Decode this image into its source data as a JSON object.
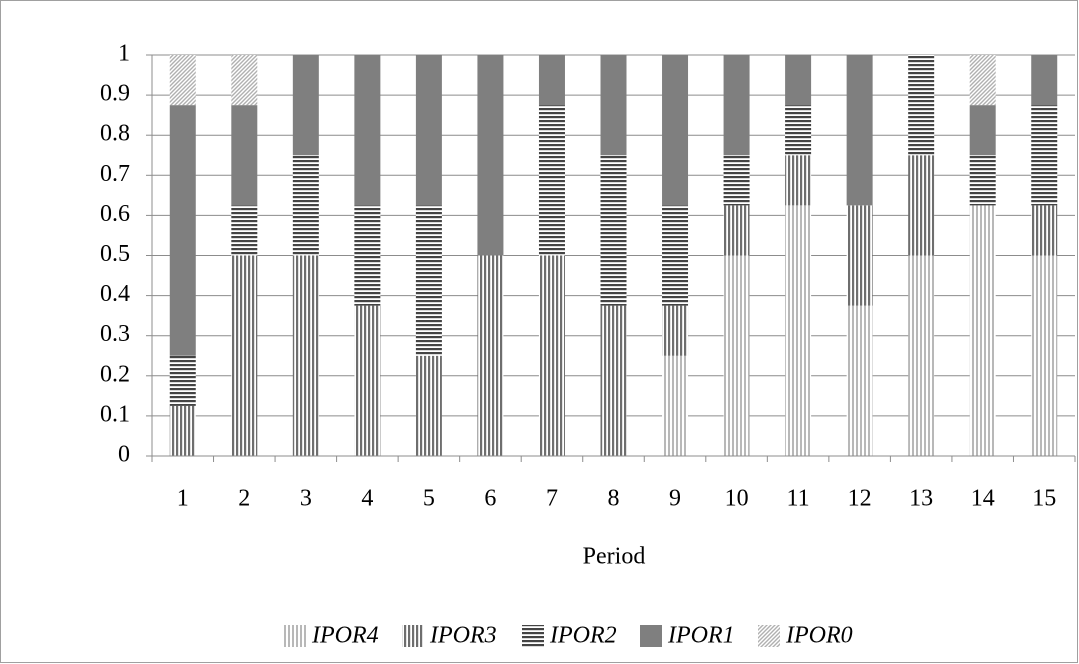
{
  "chart_data": {
    "type": "stacked_bar",
    "x_label": "Period",
    "categories": [
      "1",
      "2",
      "3",
      "4",
      "5",
      "6",
      "7",
      "8",
      "9",
      "10",
      "11",
      "12",
      "13",
      "14",
      "15"
    ],
    "series": [
      {
        "name": "IPOR4",
        "color": "#9a9a9a",
        "values": [
          0,
          0,
          0,
          0,
          0,
          0,
          0,
          0,
          0.25,
          0.5,
          0.625,
          0.375,
          0.5,
          0.625,
          0.5
        ]
      },
      {
        "name": "IPOR3",
        "color": "#6e6e6e",
        "values": [
          0.125,
          0.5,
          0.5,
          0.375,
          0.25,
          0.5,
          0.5,
          0.375,
          0.125,
          0.125,
          0.125,
          0.25,
          0.25,
          0,
          0.125
        ]
      },
      {
        "name": "IPOR2",
        "color": "#444444",
        "values": [
          0.125,
          0.125,
          0.25,
          0.25,
          0.375,
          0,
          0.375,
          0.375,
          0.25,
          0.125,
          0.125,
          0,
          0.25,
          0.125,
          0.25
        ]
      },
      {
        "name": "IPOR1",
        "color": "#7f7f7f",
        "values": [
          0.625,
          0.25,
          0.25,
          0.375,
          0.375,
          0.5,
          0.125,
          0.25,
          0.375,
          0.25,
          0.125,
          0.375,
          0,
          0.125,
          0.125
        ]
      },
      {
        "name": "IPOR0",
        "color": "#b0b0b0",
        "values": [
          0.125,
          0.125,
          0,
          0,
          0,
          0,
          0,
          0,
          0,
          0,
          0,
          0,
          0,
          0.125,
          0
        ]
      }
    ],
    "ylim": [
      0,
      1
    ],
    "yticks": [
      0,
      0.1,
      0.2,
      0.3,
      0.4,
      0.5,
      0.6,
      0.7,
      0.8,
      0.9,
      1
    ],
    "grid": true
  }
}
